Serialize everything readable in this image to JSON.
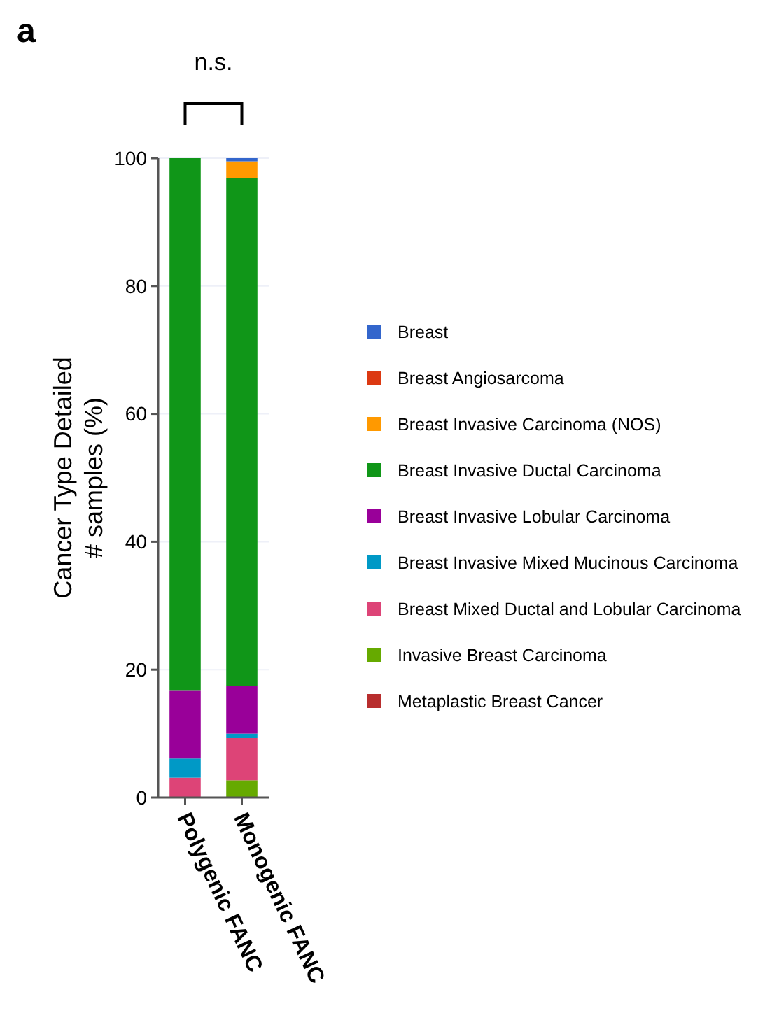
{
  "chart_data": {
    "type": "bar",
    "stacked": true,
    "ylabel": "Cancer Type Detailed\n# samples (%)",
    "categories": [
      "Polygenic FANC",
      "Monogenic FANC"
    ],
    "series": [
      {
        "name": "Metaplastic Breast Cancer",
        "color": "#b82e2e",
        "values": [
          0,
          0
        ]
      },
      {
        "name": "Invasive Breast Carcinoma",
        "color": "#66aa00",
        "values": [
          0,
          2.7
        ]
      },
      {
        "name": "Breast Mixed Ductal and Lobular Carcinoma",
        "color": "#dd4477",
        "values": [
          3.1,
          6.6
        ]
      },
      {
        "name": "Breast Invasive Mixed Mucinous Carcinoma",
        "color": "#0099c6",
        "values": [
          3.0,
          0.7
        ]
      },
      {
        "name": "Breast Invasive Lobular Carcinoma",
        "color": "#990099",
        "values": [
          10.6,
          7.4
        ]
      },
      {
        "name": "Breast Invasive Ductal Carcinoma",
        "color": "#109618",
        "values": [
          83.3,
          79.5
        ]
      },
      {
        "name": "Breast Invasive Carcinoma (NOS)",
        "color": "#ff9900",
        "values": [
          0,
          2.6
        ]
      },
      {
        "name": "Breast Angiosarcoma",
        "color": "#dc3912",
        "values": [
          0,
          0
        ]
      },
      {
        "name": "Breast",
        "color": "#3366cc",
        "values": [
          0,
          0.5
        ]
      }
    ],
    "ylim": [
      0,
      100
    ],
    "yticks": [
      0,
      20,
      40,
      60,
      80,
      100
    ],
    "grid": "y",
    "legend": "right",
    "annotations": [
      "a",
      "n.s."
    ]
  }
}
